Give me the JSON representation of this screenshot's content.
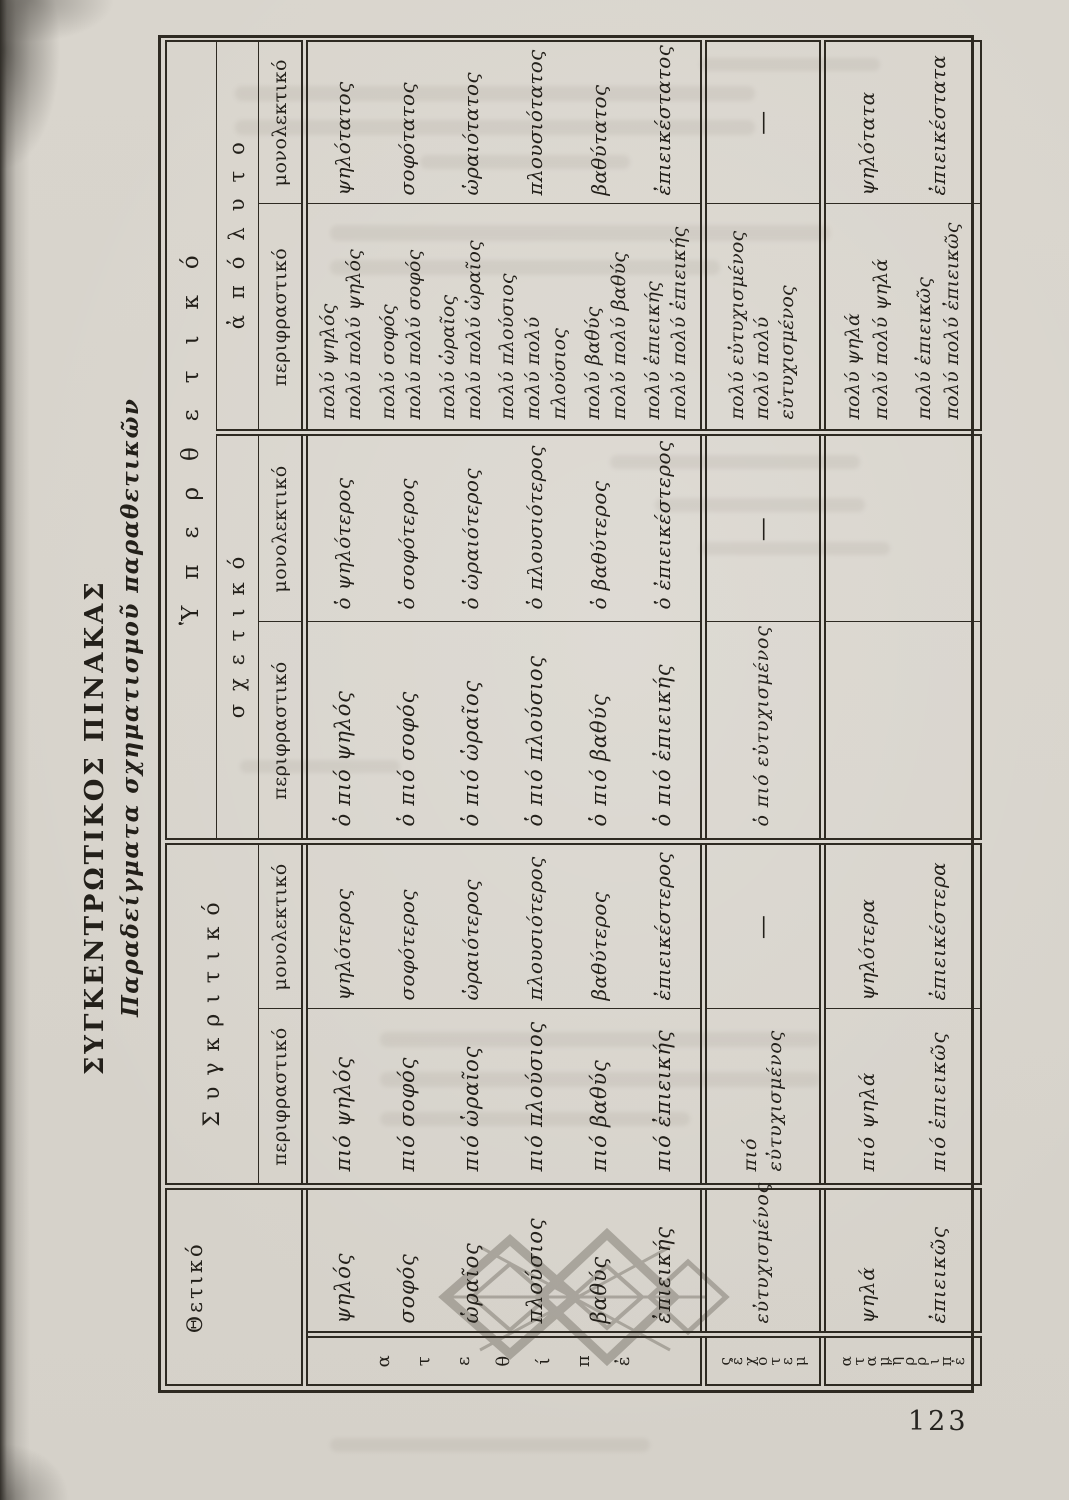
{
  "page": {
    "title": "ΣΥΓΚΕΝΤΡΩΤΙΚΟΣ ΠΙΝΑΚΑΣ",
    "subtitle": "Παραδείγματα σχηματισμοῦ παραθετικῶν",
    "page_number": "123"
  },
  "table": {
    "headers": {
      "positive": "Θετικό",
      "comparative": "Συγκριτικό",
      "superlative": "Ὑπερθετικό",
      "relative": "σχετικό",
      "absolute": "ἀπόλυτο",
      "periphrastic": "περιφραστικό",
      "monolectic": "μονολεκτικό"
    },
    "groups": [
      {
        "id": "adjectives",
        "label": "ἐπίθετα",
        "cells": {
          "positive": [
            [
              "ψηλός"
            ],
            [
              "σοφός"
            ],
            [
              "ὡραῖος"
            ],
            [
              "πλούσιος"
            ],
            [
              "βαθύς"
            ],
            [
              "ἐπιεικής"
            ]
          ],
          "comparative_periphrastic": [
            [
              "πιό ψηλός"
            ],
            [
              "πιό σοφός"
            ],
            [
              "πιό ὡραῖος"
            ],
            [
              "πιό πλούσιος"
            ],
            [
              "πιό βαθύς"
            ],
            [
              "πιό ἐπιεικής"
            ]
          ],
          "comparative_monolectic": [
            [
              "ψηλότερος"
            ],
            [
              "σοφότερος"
            ],
            [
              "ὡραιότερος"
            ],
            [
              "πλουσιότερος"
            ],
            [
              "βαθύτερος"
            ],
            [
              "ἐπιεικέστερος"
            ]
          ],
          "relative_periphrastic": [
            [
              "ὁ πιό ψηλός"
            ],
            [
              "ὁ πιό σοφός"
            ],
            [
              "ὁ πιό ὡραῖος"
            ],
            [
              "ὁ πιό πλούσιος"
            ],
            [
              "ὁ πιό βαθύς"
            ],
            [
              "ὁ πιό ἐπιεικής"
            ]
          ],
          "relative_monolectic": [
            [
              "ὁ ψηλότερος"
            ],
            [
              "ὁ σοφότερος"
            ],
            [
              "ὁ ὡραιότερος"
            ],
            [
              "ὁ πλουσιότερος"
            ],
            [
              "ὁ βαθύτερος"
            ],
            [
              "ὁ ἐπιεικέστερος"
            ]
          ],
          "absolute_periphrastic": [
            [
              "πολύ ψηλός",
              "πολύ πολύ ψηλός"
            ],
            [
              "πολύ σοφός",
              "πολύ πολύ σοφός"
            ],
            [
              "πολύ ὡραῖος",
              "πολύ πολύ ὡραῖος"
            ],
            [
              "πολύ πλούσιος",
              "πολύ πολύ",
              "πλούσιος"
            ],
            [
              "πολύ βαθύς",
              "πολύ πολύ βαθύς"
            ],
            [
              "πολύ ἐπιεικής",
              "πολύ πολύ ἐπιεικής"
            ]
          ],
          "absolute_monolectic": [
            [
              "ψηλότατος"
            ],
            [
              "σοφότατος"
            ],
            [
              "ὡραιότατος"
            ],
            [
              "πλουσιότατος"
            ],
            [
              "βαθύτατος"
            ],
            [
              "ἐπιεικέστατος"
            ]
          ]
        }
      },
      {
        "id": "participles",
        "label": "μετοχές",
        "cells": {
          "positive": [
            [
              "εὐτυχισμένος"
            ]
          ],
          "comparative_periphrastic": [
            [
              "πιό",
              "εὐτυχισμένος"
            ]
          ],
          "comparative_monolectic": [
            [
              "—"
            ]
          ],
          "relative_periphrastic": [
            [
              "ὁ πιό εὐτυχισμένος"
            ]
          ],
          "relative_monolectic": [
            [
              "—"
            ]
          ],
          "absolute_periphrastic": [
            [
              "πολύ εὐτυχισμένος",
              "πολύ πολύ",
              "εὐτυχισμένος"
            ]
          ],
          "absolute_monolectic": [
            [
              "—"
            ]
          ]
        }
      },
      {
        "id": "adverbs",
        "label": "ἐπιρρήματα",
        "cells": {
          "positive": [
            [
              "ψηλά"
            ],
            [
              "ἐπιεικῶς"
            ]
          ],
          "comparative_periphrastic": [
            [
              "πιό ψηλά"
            ],
            [
              "πιό ἐπιεικῶς"
            ]
          ],
          "comparative_monolectic": [
            [
              "ψηλότερα"
            ],
            [
              "ἐπιεικέστερα"
            ]
          ],
          "relative_periphrastic": [],
          "relative_monolectic": [],
          "absolute_periphrastic": [
            [
              "πολύ ψηλά",
              "πολύ πολύ ψηλά"
            ],
            [
              "πολύ ἐπιεικῶς",
              "πολύ πολύ ἐπιεικῶς"
            ]
          ],
          "absolute_monolectic": [
            [
              "ψηλότατα"
            ],
            [
              "ἐπιεικέστατα"
            ]
          ]
        }
      }
    ]
  }
}
